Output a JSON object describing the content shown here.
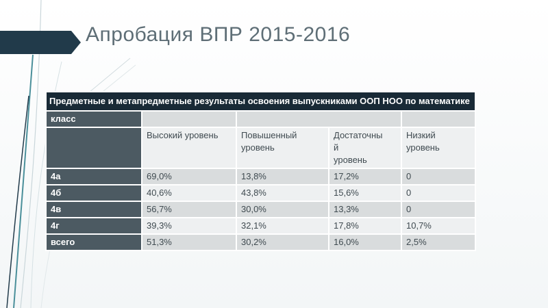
{
  "slide": {
    "title": "Апробация ВПР 2015-2016"
  },
  "table": {
    "caption": "Предметные   и метапредметные результаты освоения выпускниками ООП НОО по математике",
    "corner_label": "класс",
    "columns": [
      "Высокий уровень",
      "Повышенный уровень",
      "Достаточный уровень",
      "Низкий уровень"
    ],
    "column_display": [
      "Высокий уровень",
      "Повышенный\nуровень",
      "Достаточны\nй\nуровень",
      "Низкий\nуровень"
    ],
    "rows": [
      {
        "label": "4а",
        "values": [
          "69,0%",
          "13,8%",
          "17,2%",
          "0"
        ]
      },
      {
        "label": "4б",
        "values": [
          "40,6%",
          "43,8%",
          "15,6%",
          "0"
        ]
      },
      {
        "label": "4в",
        "values": [
          "56,7%",
          "30,0%",
          "13,3%",
          "0"
        ]
      },
      {
        "label": "4г",
        "values": [
          "39,3%",
          "32,1%",
          "17,8%",
          "10,7%"
        ]
      },
      {
        "label": "всего",
        "values": [
          "51,3%",
          "30,2%",
          "16,0%",
          "2,5%"
        ]
      }
    ]
  }
}
